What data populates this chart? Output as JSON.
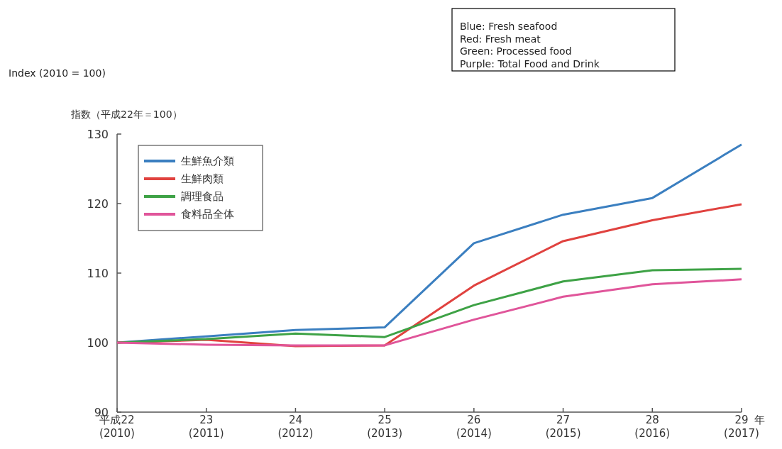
{
  "chart_data": {
    "type": "line",
    "ylabel": "指数（平成22年＝100）",
    "xlabel": "年",
    "annotations": [
      "Index (2010 = 100)",
      "Blue: Fresh seafood\nRed: Fresh meat\nGreen: Processed food\nPurple: Total Food and Drink"
    ],
    "categories": [
      "平成22\n(2010)",
      "23\n(2011)",
      "24\n(2012)",
      "25\n(2013)",
      "26\n(2014)",
      "27\n(2015)",
      "28\n(2016)",
      "29\n(2017)"
    ],
    "series": [
      {
        "name": "生鮮魚介類",
        "color": "#3b7fc0",
        "values": [
          100,
          100.9,
          101.8,
          102.2,
          114.3,
          118.4,
          120.8,
          128.5
        ]
      },
      {
        "name": "生鮮肉類",
        "color": "#e0423f",
        "values": [
          100,
          100.4,
          99.5,
          99.6,
          108.2,
          114.6,
          117.6,
          119.9
        ]
      },
      {
        "name": "調理食品",
        "color": "#3ea246",
        "values": [
          100,
          100.5,
          101.3,
          100.8,
          105.4,
          108.8,
          110.4,
          110.6
        ]
      },
      {
        "name": "食料品全体",
        "color": "#e0559a",
        "values": [
          100,
          99.7,
          99.6,
          99.6,
          103.3,
          106.6,
          108.4,
          109.1
        ]
      }
    ],
    "ylim": [
      90,
      130
    ],
    "yticks": [
      90,
      100,
      110,
      120,
      130
    ],
    "legend": "top left",
    "grid": false,
    "line_style": "solid",
    "marker": "none"
  }
}
